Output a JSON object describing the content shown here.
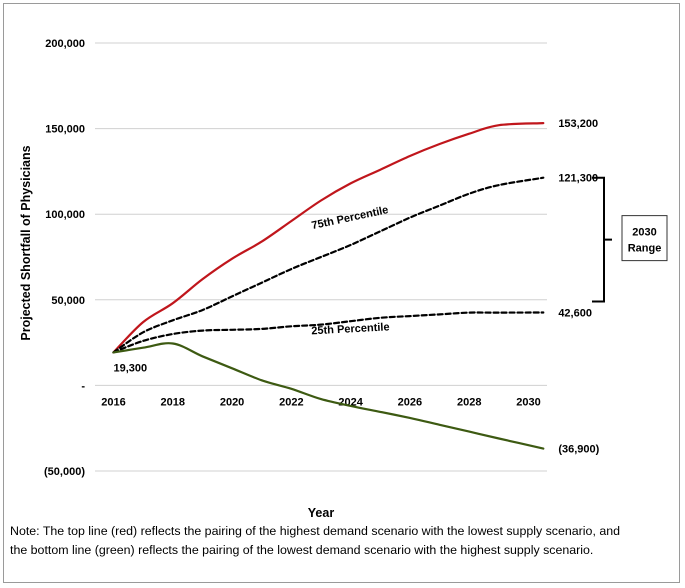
{
  "chart_data": {
    "type": "line",
    "title": "",
    "xlabel": "Year",
    "ylabel": "Projected Shortfall of Physicians",
    "xlim": [
      2016,
      2030.6
    ],
    "ylim": [
      -50000,
      200000
    ],
    "x_ticks": [
      2016,
      2018,
      2020,
      2022,
      2024,
      2026,
      2028,
      2030
    ],
    "y_ticks": [
      {
        "value": 200000,
        "label": "200,000"
      },
      {
        "value": 150000,
        "label": "150,000"
      },
      {
        "value": 100000,
        "label": "100,000"
      },
      {
        "value": 50000,
        "label": "50,000"
      },
      {
        "value": 0,
        "label": "-"
      },
      {
        "value": -50000,
        "label": "(50,000)"
      }
    ],
    "grid": true,
    "series": [
      {
        "color": "#c0161c",
        "dash": "solid",
        "points": [
          [
            2016,
            19300
          ],
          [
            2017,
            37000
          ],
          [
            2018,
            48000
          ],
          [
            2019,
            62000
          ],
          [
            2020,
            74000
          ],
          [
            2021,
            84000
          ],
          [
            2022,
            96000
          ],
          [
            2023,
            108000
          ],
          [
            2024,
            118000
          ],
          [
            2025,
            126000
          ],
          [
            2026,
            134000
          ],
          [
            2027,
            141000
          ],
          [
            2028,
            147000
          ],
          [
            2029,
            152000
          ],
          [
            2030.5,
            153200
          ]
        ]
      },
      {
        "color": "#000000",
        "dash": "dashed",
        "points": [
          [
            2016,
            19300
          ],
          [
            2017,
            31000
          ],
          [
            2018,
            38000
          ],
          [
            2019,
            44000
          ],
          [
            2020,
            52000
          ],
          [
            2021,
            60000
          ],
          [
            2022,
            68000
          ],
          [
            2023,
            75000
          ],
          [
            2024,
            82000
          ],
          [
            2025,
            90000
          ],
          [
            2026,
            98000
          ],
          [
            2027,
            105000
          ],
          [
            2028,
            112000
          ],
          [
            2029,
            117000
          ],
          [
            2030.5,
            121300
          ]
        ]
      },
      {
        "color": "#000000",
        "dash": "dashed",
        "points": [
          [
            2016,
            19300
          ],
          [
            2017,
            26000
          ],
          [
            2018,
            30000
          ],
          [
            2019,
            32000
          ],
          [
            2020,
            32500
          ],
          [
            2021,
            33000
          ],
          [
            2022,
            34500
          ],
          [
            2023,
            35500
          ],
          [
            2024,
            37500
          ],
          [
            2025,
            39500
          ],
          [
            2026,
            40500
          ],
          [
            2027,
            41500
          ],
          [
            2028,
            42500
          ],
          [
            2029,
            42500
          ],
          [
            2030.5,
            42600
          ]
        ]
      },
      {
        "color": "#3d5a12",
        "dash": "solid",
        "points": [
          [
            2016,
            19300
          ],
          [
            2017,
            22000
          ],
          [
            2018,
            24500
          ],
          [
            2019,
            17000
          ],
          [
            2020,
            10000
          ],
          [
            2021,
            3000
          ],
          [
            2022,
            -2000
          ],
          [
            2023,
            -8000
          ],
          [
            2024,
            -12000
          ],
          [
            2025,
            -15500
          ],
          [
            2026,
            -19000
          ],
          [
            2027,
            -23000
          ],
          [
            2028,
            -27000
          ],
          [
            2029,
            -31000
          ],
          [
            2030.5,
            -36900
          ]
        ]
      }
    ],
    "annotations": [
      {
        "text": "153,200",
        "x": 2030.5,
        "y": 153200
      },
      {
        "text": "121,300",
        "x": 2030.5,
        "y": 121300
      },
      {
        "text": "42,600",
        "x": 2030.5,
        "y": 42600
      },
      {
        "text": "(36,900)",
        "x": 2030.5,
        "y": -36900
      },
      {
        "text": "19,300",
        "x": 2016,
        "y": 19300
      },
      {
        "text": "75th Percentile",
        "x": 2024,
        "y": 96000
      },
      {
        "text": "25th Percentile",
        "x": 2024,
        "y": 31000
      }
    ],
    "range_bracket": {
      "label_line1": "2030",
      "label_line2": "Range",
      "y_from": 121300,
      "y_to": 49000
    }
  },
  "note": {
    "line1": "Note: The top line (red) reflects the pairing of the highest demand scenario with the lowest supply scenario, and",
    "line2": "the bottom line (green) reflects the pairing of the lowest demand scenario with the highest supply scenario."
  }
}
